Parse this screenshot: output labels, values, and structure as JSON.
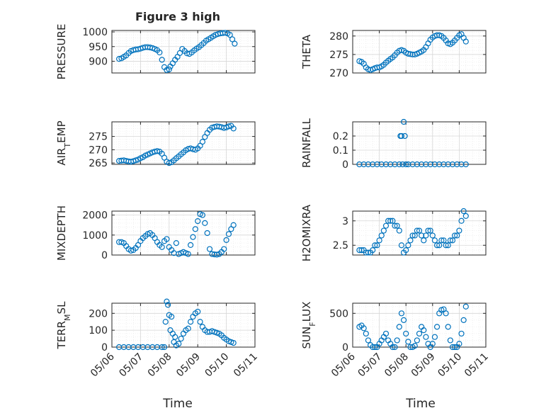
{
  "figure": {
    "title": "Figure 3 high",
    "xlabel": "Time",
    "marker_color": "#0072bd",
    "grid": "on, dotted major and minor",
    "x_ticks": [
      "05/06",
      "05/07",
      "05/08",
      "05/09",
      "05/10",
      "05/11"
    ],
    "x_tick_days": [
      6,
      7,
      8,
      9,
      10,
      11
    ]
  },
  "chart_data": [
    {
      "type": "scatter",
      "ylabel": "PRESSURE",
      "ylim": [
        860,
        1005
      ],
      "yticks": [
        900,
        950,
        1000
      ],
      "ytick_labels": [
        "900",
        "950",
        "1000"
      ],
      "xlim": [
        "05/06",
        "05/11"
      ],
      "x": [
        "05/06 06:00",
        "05/06 08:00",
        "05/06 10:00",
        "05/06 12:00",
        "05/06 14:00",
        "05/06 16:00",
        "05/06 18:00",
        "05/06 20:00",
        "05/06 22:00",
        "05/07 00:00",
        "05/07 02:00",
        "05/07 04:00",
        "05/07 06:00",
        "05/07 08:00",
        "05/07 10:00",
        "05/07 12:00",
        "05/07 14:00",
        "05/07 16:00",
        "05/07 18:00",
        "05/07 20:00",
        "05/07 22:00",
        "05/08 00:00",
        "05/08 01:00",
        "05/08 03:00",
        "05/08 05:00",
        "05/08 07:00",
        "05/08 09:00",
        "05/08 11:00",
        "05/08 13:00",
        "05/08 15:00",
        "05/08 17:00",
        "05/08 19:00",
        "05/08 21:00",
        "05/08 23:00",
        "05/09 01:00",
        "05/09 03:00",
        "05/09 05:00",
        "05/09 07:00",
        "05/09 09:00",
        "05/09 11:00",
        "05/09 13:00",
        "05/09 15:00",
        "05/09 17:00",
        "05/09 19:00",
        "05/09 21:00",
        "05/09 23:00",
        "05/10 01:00",
        "05/10 03:00",
        "05/10 05:00",
        "05/10 07:00"
      ],
      "y": [
        908,
        910,
        915,
        920,
        928,
        935,
        938,
        940,
        941,
        943,
        946,
        948,
        948,
        947,
        945,
        942,
        938,
        930,
        905,
        880,
        870,
        872,
        882,
        893,
        905,
        915,
        928,
        942,
        935,
        927,
        925,
        930,
        937,
        943,
        948,
        955,
        962,
        970,
        975,
        980,
        985,
        990,
        993,
        995,
        996,
        997,
        995,
        990,
        975,
        960
      ]
    },
    {
      "type": "scatter",
      "ylabel": "THETA",
      "ylim": [
        270,
        281.5
      ],
      "yticks": [
        270,
        275,
        280
      ],
      "ytick_labels": [
        "270",
        "275",
        "280"
      ],
      "xlim": [
        "05/06",
        "05/11"
      ],
      "x": [
        "05/06 06:00",
        "05/06 08:00",
        "05/06 10:00",
        "05/06 12:00",
        "05/06 14:00",
        "05/06 16:00",
        "05/06 18:00",
        "05/06 20:00",
        "05/06 22:00",
        "05/07 00:00",
        "05/07 02:00",
        "05/07 04:00",
        "05/07 06:00",
        "05/07 08:00",
        "05/07 10:00",
        "05/07 12:00",
        "05/07 14:00",
        "05/07 16:00",
        "05/07 18:00",
        "05/07 20:00",
        "05/07 22:00",
        "05/08 00:00",
        "05/08 02:00",
        "05/08 04:00",
        "05/08 06:00",
        "05/08 08:00",
        "05/08 10:00",
        "05/08 12:00",
        "05/08 14:00",
        "05/08 16:00",
        "05/08 18:00",
        "05/08 20:00",
        "05/08 22:00",
        "05/09 00:00",
        "05/09 02:00",
        "05/09 04:00",
        "05/09 06:00",
        "05/09 08:00",
        "05/09 10:00",
        "05/09 12:00",
        "05/09 14:00",
        "05/09 16:00",
        "05/09 18:00",
        "05/09 20:00",
        "05/09 22:00",
        "05/10 00:00",
        "05/10 02:00",
        "05/10 04:00",
        "05/10 06:00"
      ],
      "y": [
        273.2,
        273,
        272.5,
        271.5,
        271,
        270.8,
        271,
        271.3,
        271.5,
        271.5,
        271.8,
        272.2,
        272.8,
        273.3,
        273.8,
        274.2,
        274.8,
        275.5,
        276,
        276.2,
        276,
        275.5,
        275.2,
        275.1,
        275,
        275,
        275.2,
        275.5,
        275.8,
        276.2,
        277,
        278,
        279,
        279.6,
        280,
        280.2,
        280.2,
        280,
        279.5,
        278.8,
        278,
        277.8,
        278.2,
        278.8,
        279.5,
        280.2,
        280.5,
        279.5,
        278.5
      ]
    },
    {
      "type": "scatter",
      "ylabel": "AIR_TEMP",
      "ylim": [
        264.5,
        280.5
      ],
      "yticks": [
        265,
        270,
        275
      ],
      "ytick_labels": [
        "265",
        "270",
        "275"
      ],
      "xlim": [
        "05/06",
        "05/11"
      ],
      "x": [
        "05/06 06:00",
        "05/06 08:00",
        "05/06 10:00",
        "05/06 12:00",
        "05/06 14:00",
        "05/06 16:00",
        "05/06 18:00",
        "05/06 20:00",
        "05/06 22:00",
        "05/07 00:00",
        "05/07 02:00",
        "05/07 04:00",
        "05/07 06:00",
        "05/07 08:00",
        "05/07 10:00",
        "05/07 12:00",
        "05/07 14:00",
        "05/07 16:00",
        "05/07 18:00",
        "05/07 20:00",
        "05/07 22:00",
        "05/08 00:00",
        "05/08 02:00",
        "05/08 04:00",
        "05/08 06:00",
        "05/08 08:00",
        "05/08 10:00",
        "05/08 12:00",
        "05/08 14:00",
        "05/08 16:00",
        "05/08 18:00",
        "05/08 20:00",
        "05/08 22:00",
        "05/09 00:00",
        "05/09 02:00",
        "05/09 04:00",
        "05/09 06:00",
        "05/09 08:00",
        "05/09 10:00",
        "05/09 12:00",
        "05/09 14:00",
        "05/09 16:00",
        "05/09 18:00",
        "05/09 20:00",
        "05/09 22:00",
        "05/10 00:00",
        "05/10 02:00",
        "05/10 04:00",
        "05/10 06:00"
      ],
      "y": [
        265.8,
        265.9,
        266,
        265.8,
        265.6,
        265.5,
        265.7,
        266,
        266.3,
        266.8,
        267.2,
        267.8,
        268.2,
        268.6,
        269,
        269.3,
        269.5,
        269.3,
        268.5,
        267,
        265.5,
        265,
        265.3,
        266,
        266.8,
        267.5,
        268.3,
        269,
        269.8,
        270.3,
        270.5,
        270.2,
        270,
        270.5,
        271.5,
        273,
        274.8,
        276.3,
        277.5,
        278.3,
        278.6,
        278.8,
        278.7,
        278.5,
        278.2,
        278.4,
        278.8,
        279,
        278
      ]
    },
    {
      "type": "scatter",
      "ylabel": "RAINFALL",
      "ylim": [
        0,
        0.3
      ],
      "yticks": [
        0,
        0.1,
        0.2
      ],
      "ytick_labels": [
        "0",
        "0.1",
        "0.2"
      ],
      "xlim": [
        "05/06",
        "05/11"
      ],
      "x": [
        "05/06 06:00",
        "05/06 10:00",
        "05/06 14:00",
        "05/06 18:00",
        "05/06 22:00",
        "05/07 02:00",
        "05/07 06:00",
        "05/07 10:00",
        "05/07 14:00",
        "05/07 18:00",
        "05/07 19:00",
        "05/07 20:00",
        "05/07 21:00",
        "05/07 22:00",
        "05/07 23:00",
        "05/08 00:00",
        "05/08 02:00",
        "05/08 06:00",
        "05/08 10:00",
        "05/08 14:00",
        "05/08 18:00",
        "05/08 22:00",
        "05/09 02:00",
        "05/09 06:00",
        "05/09 10:00",
        "05/09 14:00",
        "05/09 18:00",
        "05/09 22:00",
        "05/10 02:00",
        "05/10 06:00"
      ],
      "y": [
        0,
        0,
        0,
        0,
        0,
        0,
        0,
        0,
        0,
        0,
        0.2,
        0.2,
        0,
        0.3,
        0.2,
        0,
        0,
        0,
        0,
        0,
        0,
        0,
        0,
        0,
        0,
        0,
        0,
        0,
        0,
        0
      ]
    },
    {
      "type": "scatter",
      "ylabel": "MIXDEPTH",
      "ylim": [
        0,
        2200
      ],
      "yticks": [
        0,
        1000,
        2000
      ],
      "ytick_labels": [
        "0",
        "1000",
        "2000"
      ],
      "xlim": [
        "05/06",
        "05/11"
      ],
      "x": [
        "05/06 06:00",
        "05/06 08:00",
        "05/06 10:00",
        "05/06 12:00",
        "05/06 14:00",
        "05/06 16:00",
        "05/06 18:00",
        "05/06 20:00",
        "05/06 22:00",
        "05/07 00:00",
        "05/07 02:00",
        "05/07 04:00",
        "05/07 06:00",
        "05/07 08:00",
        "05/07 10:00",
        "05/07 12:00",
        "05/07 14:00",
        "05/07 16:00",
        "05/07 18:00",
        "05/07 20:00",
        "05/07 22:00",
        "05/08 00:00",
        "05/08 02:00",
        "05/08 04:00",
        "05/08 06:00",
        "05/08 08:00",
        "05/08 10:00",
        "05/08 12:00",
        "05/08 14:00",
        "05/08 16:00",
        "05/08 18:00",
        "05/08 20:00",
        "05/08 22:00",
        "05/09 00:00",
        "05/09 02:00",
        "05/09 04:00",
        "05/09 06:00",
        "05/09 08:00",
        "05/09 10:00",
        "05/09 12:00",
        "05/09 14:00",
        "05/09 16:00",
        "05/09 18:00",
        "05/09 20:00",
        "05/09 22:00",
        "05/10 00:00",
        "05/10 02:00",
        "05/10 04:00",
        "05/10 06:00"
      ],
      "y": [
        650,
        650,
        600,
        450,
        300,
        220,
        250,
        350,
        500,
        700,
        850,
        950,
        1050,
        1100,
        1000,
        850,
        650,
        500,
        400,
        700,
        800,
        400,
        250,
        100,
        600,
        50,
        100,
        150,
        100,
        50,
        500,
        900,
        1300,
        1700,
        2050,
        2000,
        1600,
        1100,
        300,
        50,
        30,
        20,
        50,
        150,
        300,
        750,
        1050,
        1300,
        1500
      ]
    },
    {
      "type": "scatter",
      "ylabel": "H2OMIXRA",
      "ylim": [
        2.3,
        3.2
      ],
      "yticks": [
        2.5,
        3
      ],
      "ytick_labels": [
        "2.5",
        "3"
      ],
      "xlim": [
        "05/06",
        "05/11"
      ],
      "x": [
        "05/06 06:00",
        "05/06 08:00",
        "05/06 10:00",
        "05/06 12:00",
        "05/06 14:00",
        "05/06 16:00",
        "05/06 18:00",
        "05/06 20:00",
        "05/06 22:00",
        "05/07 00:00",
        "05/07 02:00",
        "05/07 04:00",
        "05/07 06:00",
        "05/07 08:00",
        "05/07 10:00",
        "05/07 12:00",
        "05/07 14:00",
        "05/07 16:00",
        "05/07 18:00",
        "05/07 20:00",
        "05/07 22:00",
        "05/08 00:00",
        "05/08 02:00",
        "05/08 04:00",
        "05/08 06:00",
        "05/08 08:00",
        "05/08 10:00",
        "05/08 12:00",
        "05/08 14:00",
        "05/08 16:00",
        "05/08 18:00",
        "05/08 20:00",
        "05/08 22:00",
        "05/09 00:00",
        "05/09 02:00",
        "05/09 04:00",
        "05/09 06:00",
        "05/09 08:00",
        "05/09 10:00",
        "05/09 12:00",
        "05/09 14:00",
        "05/09 16:00",
        "05/09 18:00",
        "05/09 20:00",
        "05/09 22:00",
        "05/10 00:00",
        "05/10 02:00",
        "05/10 04:00",
        "05/10 06:00"
      ],
      "y": [
        2.4,
        2.4,
        2.4,
        2.35,
        2.35,
        2.35,
        2.4,
        2.5,
        2.5,
        2.6,
        2.7,
        2.8,
        2.9,
        3.0,
        3.0,
        3.0,
        2.9,
        2.9,
        2.8,
        2.5,
        2.35,
        2.4,
        2.5,
        2.6,
        2.7,
        2.7,
        2.8,
        2.8,
        2.7,
        2.6,
        2.7,
        2.8,
        2.8,
        2.7,
        2.6,
        2.5,
        2.5,
        2.6,
        2.6,
        2.5,
        2.5,
        2.6,
        2.6,
        2.7,
        2.7,
        2.8,
        3.0,
        3.2,
        3.1
      ]
    },
    {
      "type": "scatter",
      "ylabel": "TERR_MSL",
      "ylim": [
        0,
        260
      ],
      "yticks": [
        0,
        100,
        200
      ],
      "ytick_labels": [
        "0",
        "100",
        "200"
      ],
      "xlim": [
        "05/06",
        "05/11"
      ],
      "x": [
        "05/06 06:00",
        "05/06 10:00",
        "05/06 14:00",
        "05/06 18:00",
        "05/06 22:00",
        "05/07 02:00",
        "05/07 06:00",
        "05/07 10:00",
        "05/07 14:00",
        "05/07 18:00",
        "05/07 20:00",
        "05/07 21:00",
        "05/07 22:00",
        "05/07 23:00",
        "05/08 00:00",
        "05/08 01:00",
        "05/08 02:00",
        "05/08 03:00",
        "05/08 04:00",
        "05/08 05:00",
        "05/08 06:00",
        "05/08 08:00",
        "05/08 10:00",
        "05/08 12:00",
        "05/08 14:00",
        "05/08 16:00",
        "05/08 18:00",
        "05/08 20:00",
        "05/08 22:00",
        "05/09 00:00",
        "05/09 02:00",
        "05/09 04:00",
        "05/09 06:00",
        "05/09 08:00",
        "05/09 10:00",
        "05/09 12:00",
        "05/09 14:00",
        "05/09 16:00",
        "05/09 18:00",
        "05/09 20:00",
        "05/09 22:00",
        "05/10 00:00",
        "05/10 02:00",
        "05/10 04:00",
        "05/10 06:00"
      ],
      "y": [
        0,
        0,
        0,
        0,
        0,
        0,
        0,
        0,
        0,
        0,
        0,
        150,
        270,
        250,
        190,
        100,
        180,
        80,
        30,
        60,
        10,
        20,
        50,
        80,
        100,
        110,
        150,
        180,
        200,
        210,
        150,
        120,
        100,
        90,
        90,
        95,
        90,
        85,
        80,
        70,
        55,
        45,
        35,
        30,
        25
      ]
    },
    {
      "type": "scatter",
      "ylabel": "SUN_FLUX",
      "ylim": [
        0,
        650
      ],
      "yticks": [
        0,
        500
      ],
      "ytick_labels": [
        "0",
        "500"
      ],
      "xlim": [
        "05/06",
        "05/11"
      ],
      "x": [
        "05/06 06:00",
        "05/06 08:00",
        "05/06 10:00",
        "05/06 12:00",
        "05/06 14:00",
        "05/06 16:00",
        "05/06 18:00",
        "05/06 20:00",
        "05/06 22:00",
        "05/07 00:00",
        "05/07 02:00",
        "05/07 04:00",
        "05/07 06:00",
        "05/07 08:00",
        "05/07 10:00",
        "05/07 12:00",
        "05/07 14:00",
        "05/07 16:00",
        "05/07 18:00",
        "05/07 20:00",
        "05/07 22:00",
        "05/08 00:00",
        "05/08 02:00",
        "05/08 04:00",
        "05/08 06:00",
        "05/08 08:00",
        "05/08 10:00",
        "05/08 12:00",
        "05/08 14:00",
        "05/08 16:00",
        "05/08 18:00",
        "05/08 20:00",
        "05/08 22:00",
        "05/09 00:00",
        "05/09 02:00",
        "05/09 04:00",
        "05/09 06:00",
        "05/09 08:00",
        "05/09 10:00",
        "05/09 12:00",
        "05/09 14:00",
        "05/09 16:00",
        "05/09 18:00",
        "05/09 20:00",
        "05/09 22:00",
        "05/10 00:00",
        "05/10 02:00",
        "05/10 04:00",
        "05/10 06:00"
      ],
      "y": [
        300,
        320,
        280,
        200,
        100,
        30,
        0,
        0,
        0,
        50,
        100,
        150,
        200,
        100,
        50,
        0,
        0,
        100,
        300,
        500,
        400,
        200,
        80,
        0,
        0,
        20,
        100,
        200,
        300,
        250,
        150,
        50,
        0,
        50,
        150,
        300,
        500,
        550,
        560,
        500,
        300,
        100,
        0,
        0,
        0,
        50,
        200,
        400,
        600
      ]
    }
  ]
}
